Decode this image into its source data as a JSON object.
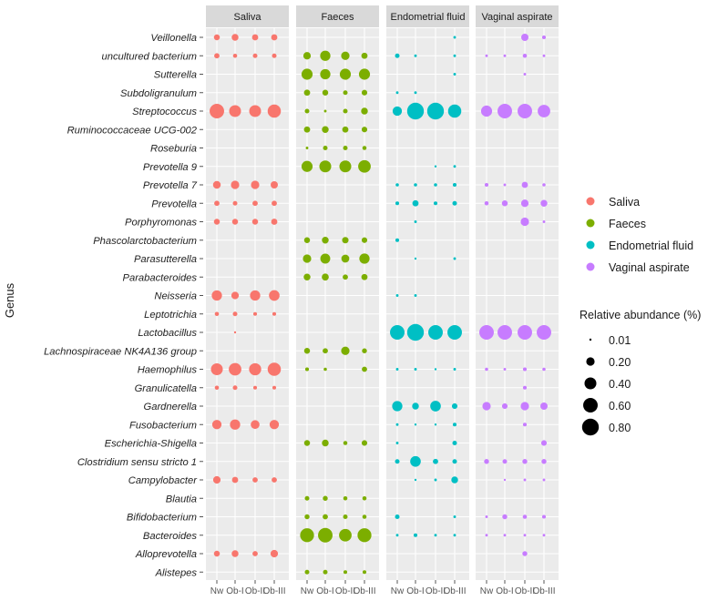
{
  "chart_data": {
    "type": "dot-plot",
    "ylabel": "Genus",
    "categories": [
      "Nw",
      "Ob-I",
      "Ob-II",
      "Ob-III"
    ],
    "genera": [
      "Veillonella",
      "uncultured bacterium",
      "Sutterella",
      "Subdoligranulum",
      "Streptococcus",
      "Ruminococcaceae UCG-002",
      "Roseburia",
      "Prevotella 9",
      "Prevotella 7",
      "Prevotella",
      "Porphyromonas",
      "Phascolarctobacterium",
      "Parasutterella",
      "Parabacteroides",
      "Neisseria",
      "Leptotrichia",
      "Lactobacillus",
      "Lachnospiraceae NK4A136 group",
      "Haemophilus",
      "Granulicatella",
      "Gardnerella",
      "Fusobacterium",
      "Escherichia-Shigella",
      "Clostridium sensu stricto 1",
      "Campylobacter",
      "Blautia",
      "Bifidobacterium",
      "Bacteroides",
      "Alloprevotella",
      "Alistepes"
    ],
    "size_legend": {
      "title": "Relative abundance (%)",
      "values": [
        0.01,
        0.2,
        0.4,
        0.6,
        0.8
      ],
      "labels": [
        "0.01",
        "0.20",
        "0.40",
        "0.60",
        "0.80"
      ]
    },
    "series": [
      {
        "name": "Saliva",
        "color": "#F8766D",
        "values": {
          "Veillonella": [
            0.1,
            0.13,
            0.11,
            0.11
          ],
          "uncultured bacterium": [
            0.08,
            0.05,
            0.06,
            0.06
          ],
          "Streptococcus": [
            0.6,
            0.4,
            0.4,
            0.5
          ],
          "Prevotella 7": [
            0.17,
            0.2,
            0.2,
            0.15
          ],
          "Prevotella": [
            0.08,
            0.06,
            0.08,
            0.08
          ],
          "Porphyromonas": [
            0.1,
            0.1,
            0.1,
            0.11
          ],
          "Neisseria": [
            0.3,
            0.16,
            0.3,
            0.32
          ],
          "Leptotrichia": [
            0.05,
            0.06,
            0.04,
            0.04
          ],
          "Lactobacillus": [
            null,
            0.01,
            null,
            null
          ],
          "Haemophilus": [
            0.4,
            0.45,
            0.42,
            0.5
          ],
          "Granulicatella": [
            0.05,
            0.06,
            0.04,
            0.04
          ],
          "Fusobacterium": [
            0.25,
            0.3,
            0.22,
            0.25
          ],
          "Campylobacter": [
            0.16,
            0.11,
            0.08,
            0.08
          ],
          "Alloprevotella": [
            0.1,
            0.13,
            0.08,
            0.16
          ]
        }
      },
      {
        "name": "Faeces",
        "color": "#7CAE00",
        "values": {
          "uncultured bacterium": [
            0.16,
            0.3,
            0.2,
            0.11
          ],
          "Sutterella": [
            0.35,
            0.3,
            0.35,
            0.35
          ],
          "Subdoligranulum": [
            0.11,
            0.1,
            0.06,
            0.09
          ],
          "Streptococcus": [
            0.06,
            0.02,
            0.06,
            0.13
          ],
          "Ruminococcaceae UCG-002": [
            0.11,
            0.13,
            0.11,
            0.09
          ],
          "Roseburia": [
            0.02,
            0.06,
            0.06,
            0.05
          ],
          "Prevotella 9": [
            0.35,
            0.4,
            0.4,
            0.45
          ],
          "Phascolarctobacterium": [
            0.1,
            0.13,
            0.12,
            0.09
          ],
          "Parasutterella": [
            0.2,
            0.28,
            0.18,
            0.3
          ],
          "Parabacteroides": [
            0.13,
            0.14,
            0.08,
            0.11
          ],
          "Lachnospiraceae NK4A136 group": [
            0.1,
            0.08,
            0.2,
            0.07
          ],
          "Haemophilus": [
            0.04,
            0.03,
            null,
            0.08
          ],
          "Escherichia-Shigella": [
            0.1,
            0.13,
            0.05,
            0.09
          ],
          "Blautia": [
            0.06,
            0.07,
            0.05,
            0.05
          ],
          "Bifidobacterium": [
            0.07,
            0.08,
            0.06,
            0.05
          ],
          "Bacteroides": [
            0.55,
            0.6,
            0.45,
            0.55
          ],
          "Alistepes": [
            0.06,
            0.06,
            0.04,
            0.04
          ]
        }
      },
      {
        "name": "Endometrial fluid",
        "color": "#00BFC4",
        "values": {
          "Veillonella": [
            null,
            null,
            null,
            0.02
          ],
          "uncultured bacterium": [
            0.06,
            0.02,
            null,
            0.02
          ],
          "Sutterella": [
            null,
            null,
            null,
            0.02
          ],
          "Subdoligranulum": [
            0.02,
            0.02,
            null,
            null
          ],
          "Streptococcus": [
            0.25,
            0.8,
            0.8,
            0.5
          ],
          "Prevotella 9": [
            null,
            null,
            0.01,
            0.02
          ],
          "Prevotella 7": [
            0.03,
            0.03,
            0.03,
            0.04
          ],
          "Prevotella": [
            0.04,
            0.11,
            0.04,
            0.06
          ],
          "Porphyromonas": [
            null,
            0.02,
            null,
            null
          ],
          "Phascolarctobacterium": [
            0.04,
            null,
            null,
            null
          ],
          "Parasutterella": [
            null,
            0.01,
            null,
            0.02
          ],
          "Neisseria": [
            0.02,
            0.02,
            null,
            null
          ],
          "Lactobacillus": [
            0.6,
            0.8,
            0.6,
            0.6
          ],
          "Haemophilus": [
            0.02,
            0.02,
            0.01,
            0.02
          ],
          "Gardnerella": [
            0.3,
            0.13,
            0.32,
            0.09
          ],
          "Fusobacterium": [
            0.02,
            0.01,
            0.01,
            0.04
          ],
          "Escherichia-Shigella": [
            0.02,
            null,
            null,
            0.06
          ],
          "Clostridium sensu stricto 1": [
            0.06,
            0.32,
            0.08,
            0.06
          ],
          "Campylobacter": [
            null,
            0.01,
            0.02,
            0.13
          ],
          "Bifidobacterium": [
            0.06,
            null,
            null,
            0.02
          ],
          "Bacteroides": [
            0.02,
            0.04,
            0.02,
            0.02
          ]
        }
      },
      {
        "name": "Vaginal aspirate",
        "color": "#C77CFF",
        "values": {
          "Veillonella": [
            null,
            null,
            0.15,
            0.04
          ],
          "uncultured bacterium": [
            0.02,
            0.02,
            0.05,
            0.02
          ],
          "Sutterella": [
            null,
            null,
            0.02,
            null
          ],
          "Streptococcus": [
            0.35,
            0.6,
            0.6,
            0.45
          ],
          "Prevotella 7": [
            0.04,
            0.02,
            0.11,
            0.03
          ],
          "Prevotella": [
            0.05,
            0.1,
            0.16,
            0.13
          ],
          "Porphyromonas": [
            null,
            null,
            0.2,
            0.02
          ],
          "Lactobacillus": [
            0.6,
            0.6,
            0.6,
            0.6
          ],
          "Haemophilus": [
            0.03,
            0.02,
            0.04,
            0.03
          ],
          "Granulicatella": [
            null,
            null,
            0.04,
            null
          ],
          "Gardnerella": [
            0.2,
            0.09,
            0.2,
            0.15
          ],
          "Fusobacterium": [
            null,
            null,
            0.04,
            null
          ],
          "Escherichia-Shigella": [
            null,
            null,
            null,
            0.09
          ],
          "Clostridium sensu stricto 1": [
            0.07,
            0.06,
            0.07,
            0.07
          ],
          "Campylobacter": [
            null,
            0.01,
            0.02,
            0.02
          ],
          "Bifidobacterium": [
            0.02,
            0.07,
            0.05,
            0.04
          ],
          "Bacteroides": [
            0.02,
            0.02,
            0.02,
            0.02
          ],
          "Alloprevotella": [
            null,
            null,
            0.07,
            null
          ]
        }
      }
    ]
  }
}
